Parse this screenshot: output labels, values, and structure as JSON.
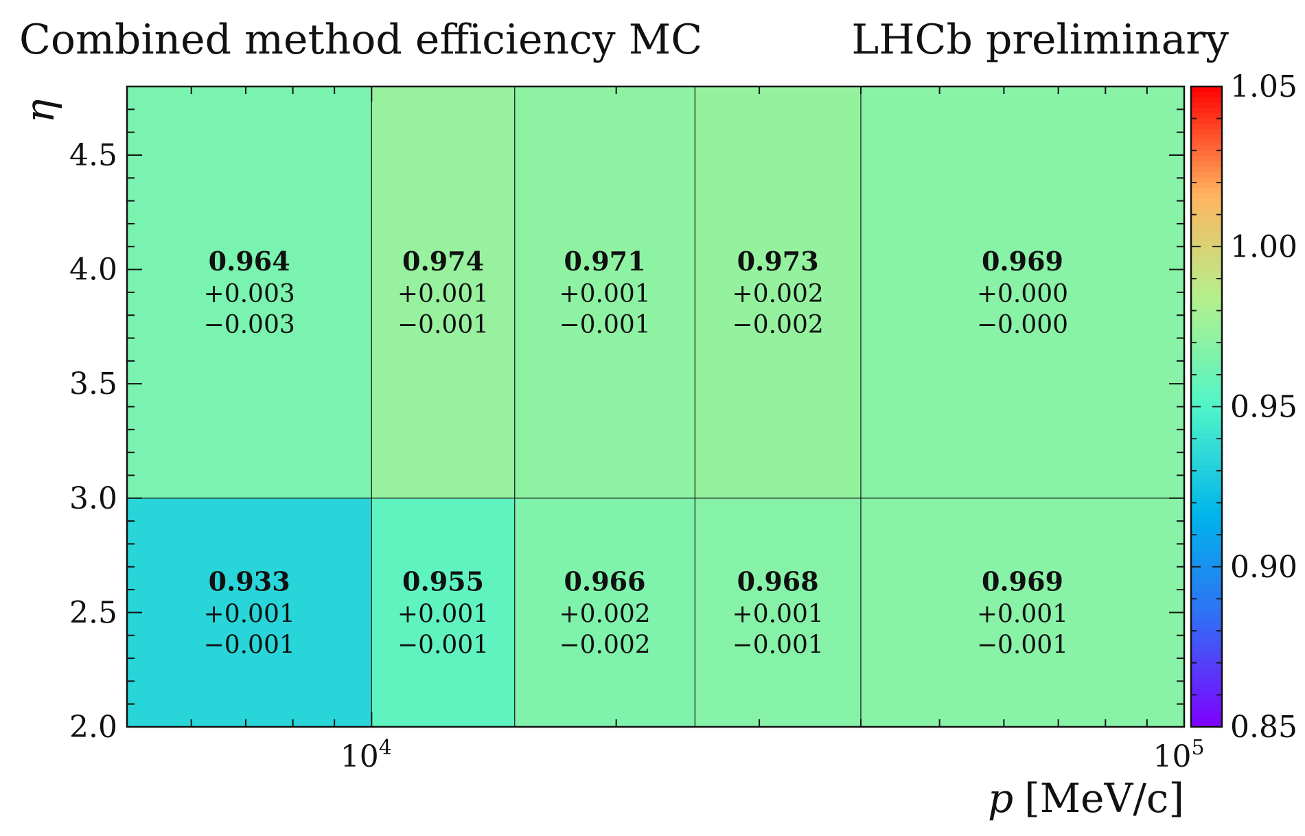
{
  "chart_data": {
    "type": "heatmap",
    "title": "Combined method efficiency MC",
    "subtitle": "LHCb preliminary",
    "xlabel_var": "p",
    "xlabel_unit": "[MeV/c]",
    "ylabel": "η",
    "x_scale": "log",
    "x_range": [
      5000,
      100000
    ],
    "x_bin_edges": [
      5000,
      10000,
      15000,
      25000,
      40000,
      100000
    ],
    "x_tick_labels": [
      {
        "value": 10000,
        "base": "10",
        "exp": "4"
      },
      {
        "value": 100000,
        "base": "10",
        "exp": "5"
      }
    ],
    "y_range": [
      2.0,
      4.8
    ],
    "y_bin_edges": [
      2.0,
      3.0,
      4.8
    ],
    "y_ticks": [
      "2.0",
      "2.5",
      "3.0",
      "3.5",
      "4.0",
      "4.5"
    ],
    "colorbar": {
      "min": 0.85,
      "max": 1.05,
      "colormap": "rainbow",
      "ticks": [
        "0.85",
        "0.90",
        "0.95",
        "1.00",
        "1.05"
      ]
    },
    "rows": [
      {
        "y_bin": [
          2.0,
          3.0
        ],
        "cells": [
          {
            "value": "0.933",
            "plus": "+0.001",
            "minus": "−0.001"
          },
          {
            "value": "0.955",
            "plus": "+0.001",
            "minus": "−0.001"
          },
          {
            "value": "0.966",
            "plus": "+0.002",
            "minus": "−0.002"
          },
          {
            "value": "0.968",
            "plus": "+0.001",
            "minus": "−0.001"
          },
          {
            "value": "0.969",
            "plus": "+0.001",
            "minus": "−0.001"
          }
        ]
      },
      {
        "y_bin": [
          3.0,
          4.8
        ],
        "cells": [
          {
            "value": "0.964",
            "plus": "+0.003",
            "minus": "−0.003"
          },
          {
            "value": "0.974",
            "plus": "+0.001",
            "minus": "−0.001"
          },
          {
            "value": "0.971",
            "plus": "+0.001",
            "minus": "−0.001"
          },
          {
            "value": "0.973",
            "plus": "+0.002",
            "minus": "−0.002"
          },
          {
            "value": "0.969",
            "plus": "+0.000",
            "minus": "−0.000"
          }
        ]
      }
    ]
  }
}
